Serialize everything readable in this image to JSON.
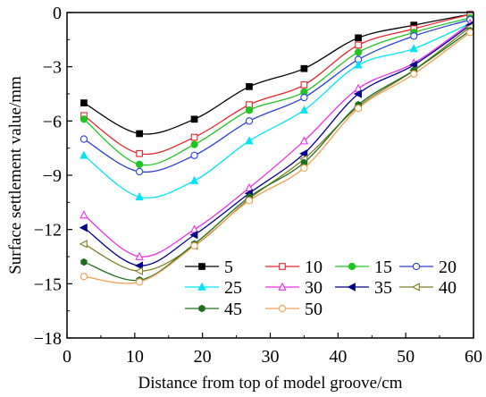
{
  "chart_data": {
    "type": "line",
    "title": "",
    "xlabel": "Distance from top of model groove/cm",
    "ylabel": "Surface settlement value/mm",
    "xlim": [
      0,
      60
    ],
    "ylim": [
      -18,
      0
    ],
    "xticks": [
      0,
      10,
      20,
      30,
      40,
      50,
      60
    ],
    "yticks": [
      0,
      -3,
      -6,
      -9,
      -12,
      -15,
      -18
    ],
    "grid": false,
    "legend_position": "bottom-right",
    "x": [
      2.5,
      10.7,
      18.8,
      26.9,
      35.0,
      43.0,
      51.2,
      59.5
    ],
    "series": [
      {
        "name": "5",
        "color": "#000000",
        "marker": "square-filled",
        "values": [
          -5.0,
          -6.7,
          -5.9,
          -4.1,
          -3.1,
          -1.4,
          -0.7,
          -0.1
        ]
      },
      {
        "name": "10",
        "color": "#e8242b",
        "marker": "square-open",
        "values": [
          -5.7,
          -7.8,
          -6.9,
          -5.1,
          -4.0,
          -1.8,
          -0.9,
          -0.1
        ]
      },
      {
        "name": "15",
        "color": "#22c422",
        "marker": "circle-filled",
        "values": [
          -5.9,
          -8.4,
          -7.3,
          -5.4,
          -4.4,
          -2.2,
          -1.1,
          -0.3
        ]
      },
      {
        "name": "20",
        "color": "#2b3fdb",
        "marker": "circle-open",
        "values": [
          -7.0,
          -8.8,
          -7.9,
          -6.0,
          -4.7,
          -2.6,
          -1.3,
          -0.4
        ]
      },
      {
        "name": "25",
        "color": "#00e5f5",
        "marker": "triangle-filled",
        "values": [
          -7.9,
          -10.2,
          -9.3,
          -7.1,
          -5.4,
          -2.9,
          -2.0,
          -0.6
        ]
      },
      {
        "name": "30",
        "color": "#ee2ee8",
        "marker": "triangle-open",
        "values": [
          -11.2,
          -13.5,
          -12.0,
          -9.7,
          -7.1,
          -4.2,
          -2.8,
          -0.6
        ]
      },
      {
        "name": "35",
        "color": "#00008b",
        "marker": "triangle-left-filled",
        "values": [
          -11.9,
          -14.0,
          -12.3,
          -10.0,
          -7.8,
          -4.5,
          -2.9,
          -0.7
        ]
      },
      {
        "name": "40",
        "color": "#7d7d28",
        "marker": "triangle-left-open",
        "values": [
          -12.8,
          -14.3,
          -12.9,
          -10.3,
          -8.1,
          -5.2,
          -3.2,
          -0.8
        ]
      },
      {
        "name": "45",
        "color": "#1e6e1e",
        "marker": "hexagon-filled",
        "values": [
          -13.8,
          -14.8,
          -12.8,
          -10.2,
          -8.3,
          -5.1,
          -3.2,
          -1.0
        ]
      },
      {
        "name": "50",
        "color": "#f0a050",
        "marker": "circle-open",
        "values": [
          -14.6,
          -14.9,
          -12.9,
          -10.4,
          -8.6,
          -5.3,
          -3.4,
          -1.1
        ]
      }
    ]
  }
}
